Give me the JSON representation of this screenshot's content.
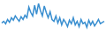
{
  "chart_data": {
    "type": "line",
    "values": [
      40,
      45,
      38,
      50,
      42,
      55,
      48,
      60,
      52,
      45,
      58,
      50,
      62,
      55,
      85,
      70,
      60,
      90,
      65,
      95,
      75,
      60,
      88,
      70,
      55,
      72,
      50,
      45,
      60,
      40,
      55,
      35,
      50,
      42,
      30,
      48,
      38,
      55,
      35,
      45,
      30,
      50,
      38,
      42,
      28,
      48,
      35,
      45,
      32,
      40,
      50,
      38,
      42,
      45
    ],
    "color": "#3a8fd0",
    "ylim": [
      0,
      100
    ],
    "tick_labels": false
  }
}
